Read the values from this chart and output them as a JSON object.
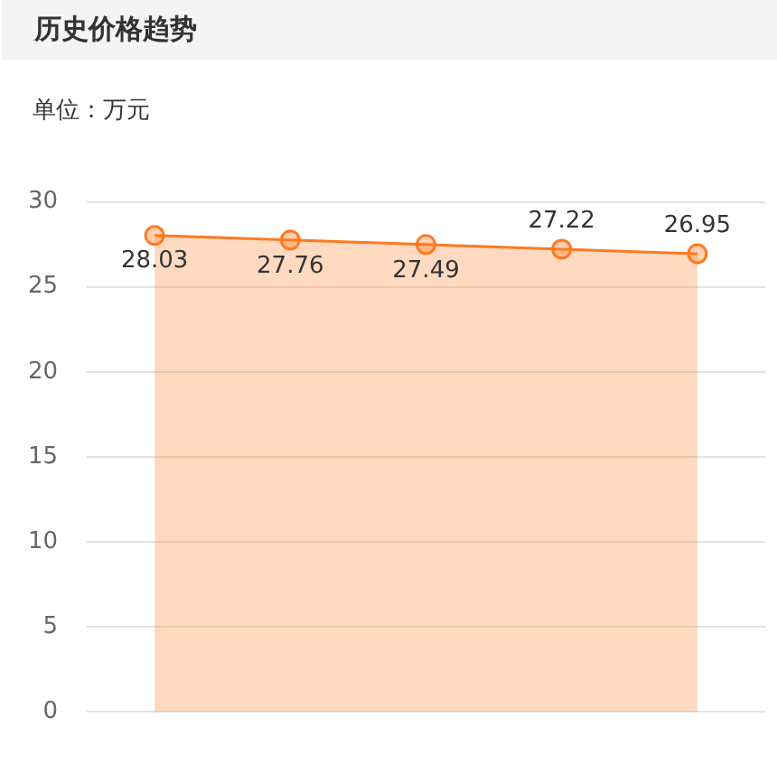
{
  "chart_data": {
    "type": "area",
    "title": "历史价格趋势",
    "subtitle": "单位：万元",
    "categories": [
      null,
      null,
      null,
      null,
      null
    ],
    "series": [
      {
        "color": "#ff7a1f",
        "values": [
          28.03,
          27.76,
          27.49,
          27.22,
          26.95
        ]
      }
    ],
    "ylim": [
      0,
      30
    ],
    "yticks": [
      0,
      5,
      10,
      15,
      20,
      25,
      30
    ],
    "grid": "y",
    "tick_labels": "y",
    "marker": "circle",
    "data_labels": true
  }
}
